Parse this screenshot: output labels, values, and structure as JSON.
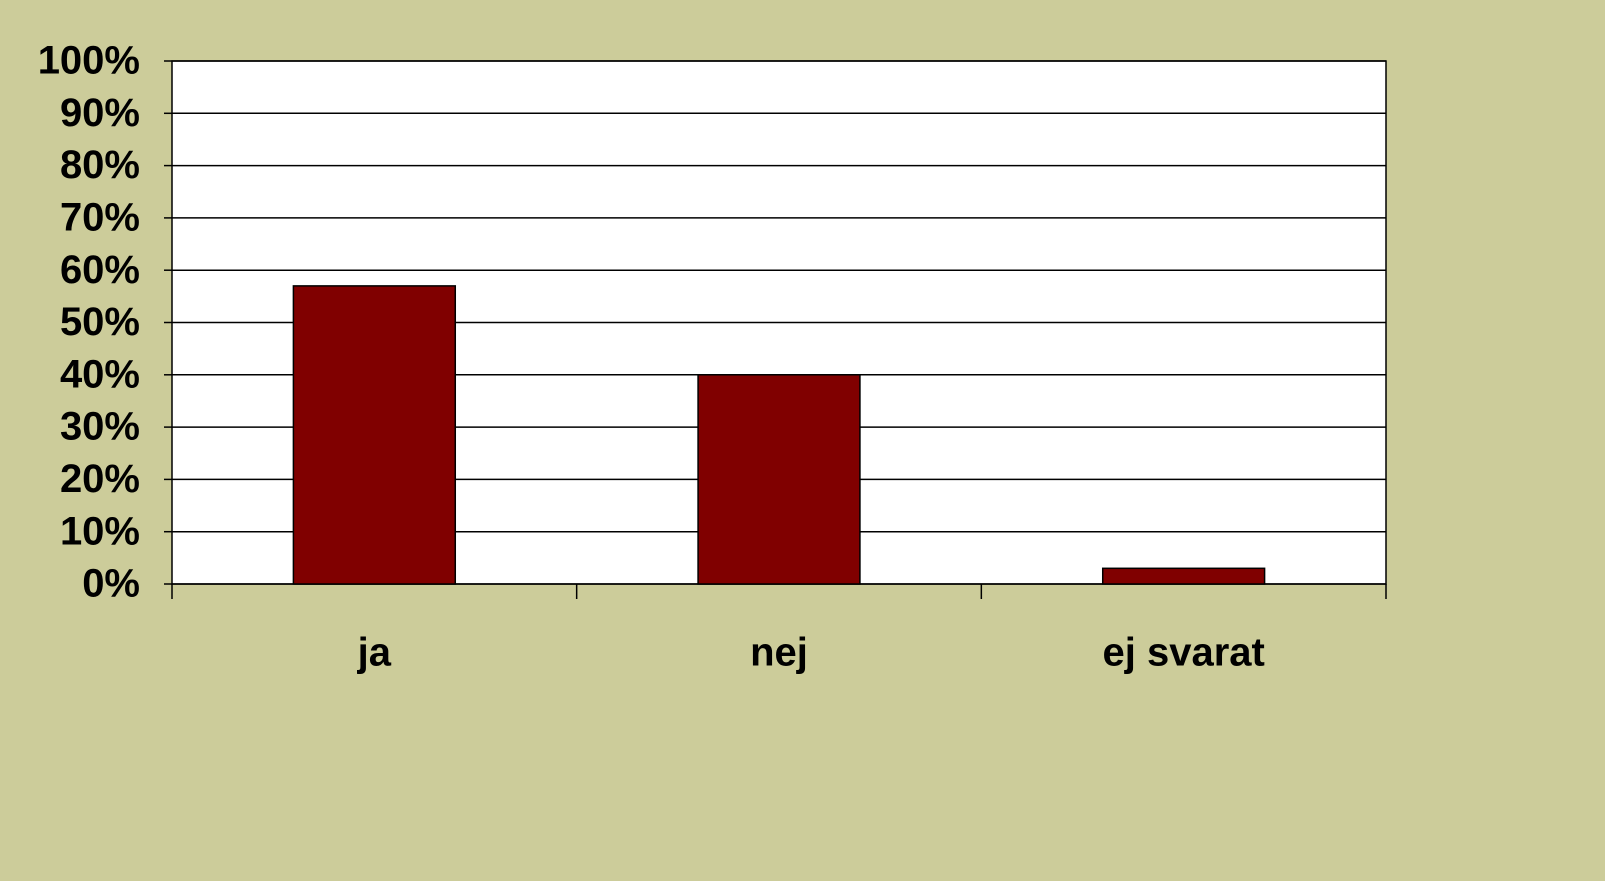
{
  "chart_data": {
    "type": "bar",
    "categories": [
      "ja",
      "nej",
      "ej svarat"
    ],
    "values": [
      57,
      40,
      3
    ],
    "color": "#800000",
    "ylim": [
      0,
      100
    ],
    "yticks": [
      {
        "value": 0,
        "label": "0%"
      },
      {
        "value": 10,
        "label": "10%"
      },
      {
        "value": 20,
        "label": "20%"
      },
      {
        "value": 30,
        "label": "30%"
      },
      {
        "value": 40,
        "label": "40%"
      },
      {
        "value": 50,
        "label": "50%"
      },
      {
        "value": 60,
        "label": "60%"
      },
      {
        "value": 70,
        "label": "70%"
      },
      {
        "value": 80,
        "label": "80%"
      },
      {
        "value": 90,
        "label": "90%"
      },
      {
        "value": 100,
        "label": "100%"
      }
    ],
    "grid": true
  }
}
